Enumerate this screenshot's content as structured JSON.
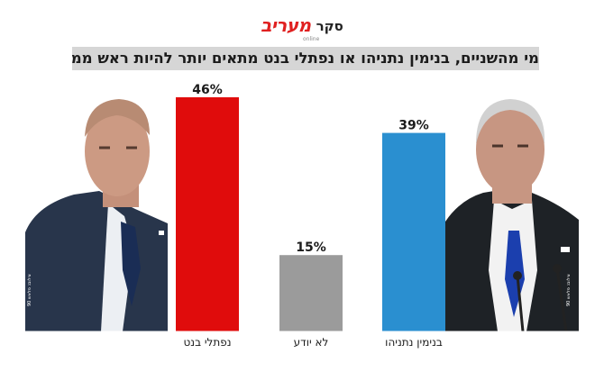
{
  "header": {
    "poll_word": "סקר",
    "brand": "מעריב",
    "brand_sub": "online"
  },
  "question": "מי מהשניים, בנימין נתניהו או נפתלי בנט מתאים יותר להיות ראש ממשלת ישראל?",
  "photos": {
    "left": {
      "name": "נפתלי בנט",
      "credit": "צילום: פלאש 90"
    },
    "right": {
      "name": "בנימין נתניהו",
      "credit": "צילום: פלאש 90"
    }
  },
  "colors": {
    "bennett": "#e00c0c",
    "dont_know": "#9b9b9b",
    "netanyahu": "#2a8fd0"
  },
  "chart_data": {
    "type": "bar",
    "title": "",
    "xlabel": "",
    "ylabel": "",
    "ylim": [
      0,
      50
    ],
    "categories": [
      "נפתלי בנט",
      "לא יודע",
      "בנימין נתניהו"
    ],
    "values": [
      46,
      15,
      39
    ],
    "value_labels": [
      "46%",
      "15%",
      "39%"
    ],
    "bar_colors": [
      "#e00c0c",
      "#9b9b9b",
      "#2a8fd0"
    ],
    "grid": false,
    "legend": "none"
  }
}
